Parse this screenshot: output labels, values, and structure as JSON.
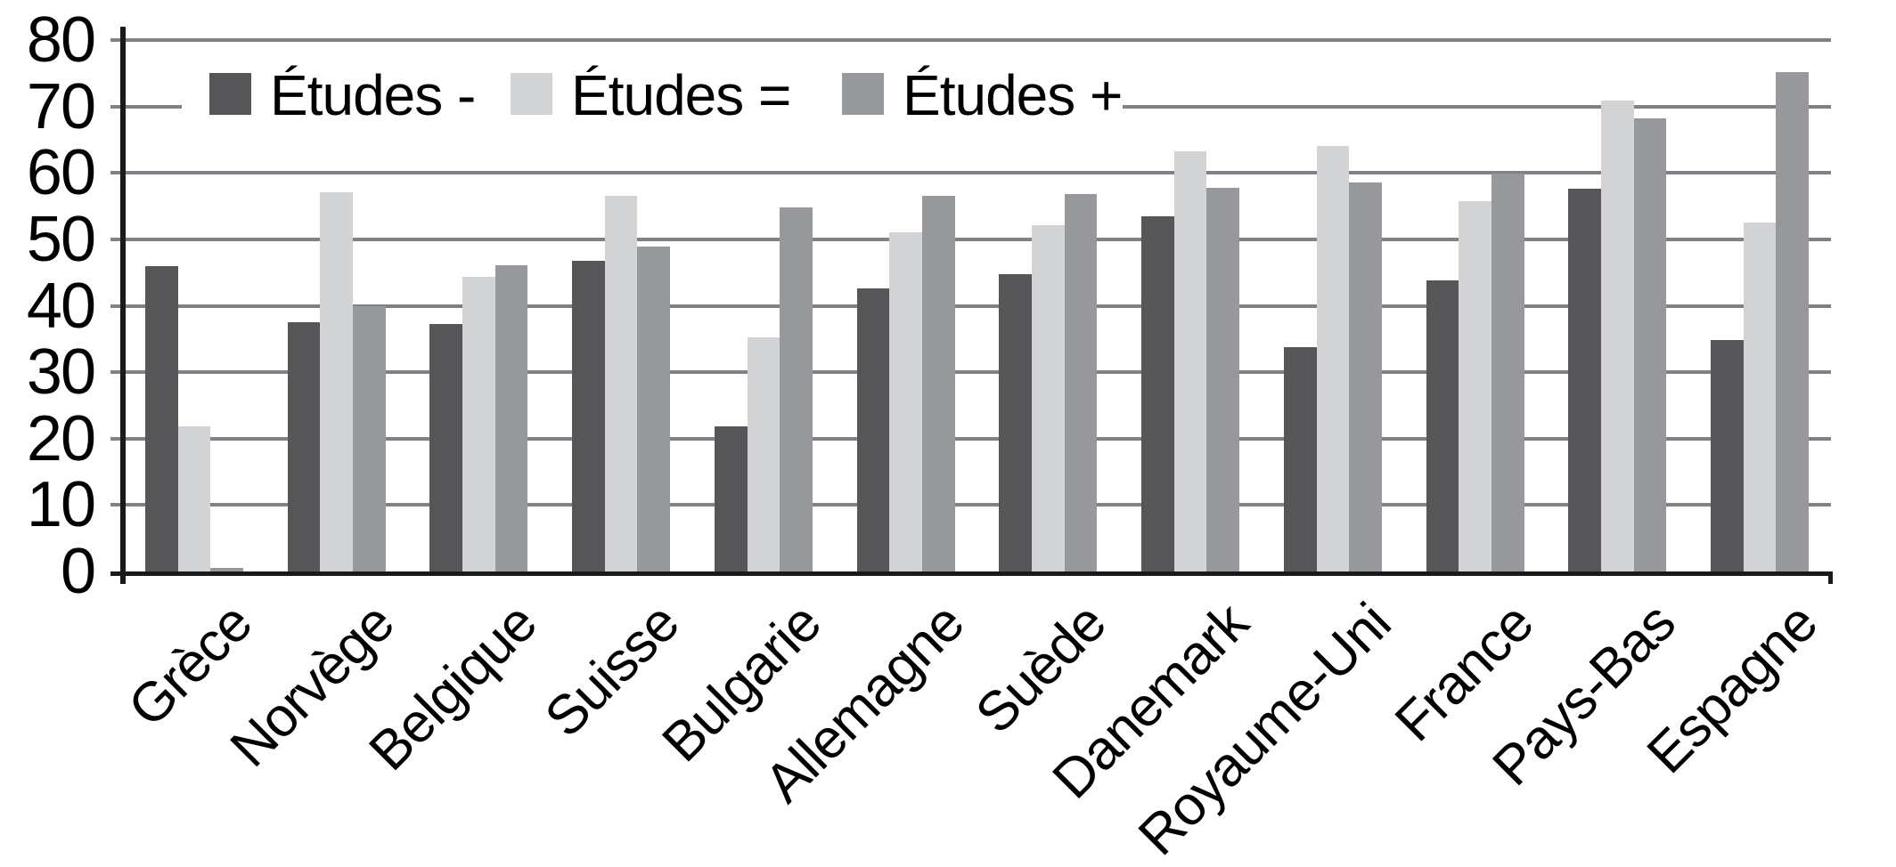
{
  "chart_data": {
    "type": "bar",
    "title": "",
    "xlabel": "",
    "ylabel": "",
    "categories": [
      "Grèce",
      "Norvège",
      "Belgique",
      "Suisse",
      "Bulgarie",
      "Allemagne",
      "Suède",
      "Danemark",
      "Royaume-Uni",
      "France",
      "Pays-Bas",
      "Espagne"
    ],
    "series": [
      {
        "name": "Études -",
        "color": "#565659",
        "values": [
          46.0,
          37.5,
          37.2,
          46.8,
          21.8,
          42.6,
          44.8,
          53.5,
          33.8,
          43.8,
          57.6,
          34.9
        ]
      },
      {
        "name": "Études =",
        "color": "#d2d3d5",
        "values": [
          21.8,
          57.1,
          44.4,
          56.6,
          35.3,
          51.0,
          52.1,
          63.2,
          64.0,
          55.8,
          70.9,
          52.5
        ]
      },
      {
        "name": "Études +",
        "color": "#96989b",
        "values": [
          0.5,
          40.0,
          46.1,
          48.9,
          54.8,
          56.6,
          56.8,
          57.7,
          58.5,
          59.9,
          68.2,
          75.2
        ]
      }
    ],
    "ylim": [
      0,
      80
    ],
    "yticks": [
      0,
      10,
      20,
      30,
      40,
      50,
      60,
      70,
      80
    ],
    "grid": true,
    "legend_position": "top-inside",
    "x_labels_rotation_deg": 45
  },
  "colors": {
    "background": "#ffffff",
    "gridline": "#7f8184",
    "axis": "#1a1a1a",
    "text": "#000000",
    "series_dark": "#565659",
    "series_light": "#d2d3d5",
    "series_medium": "#96989b"
  }
}
